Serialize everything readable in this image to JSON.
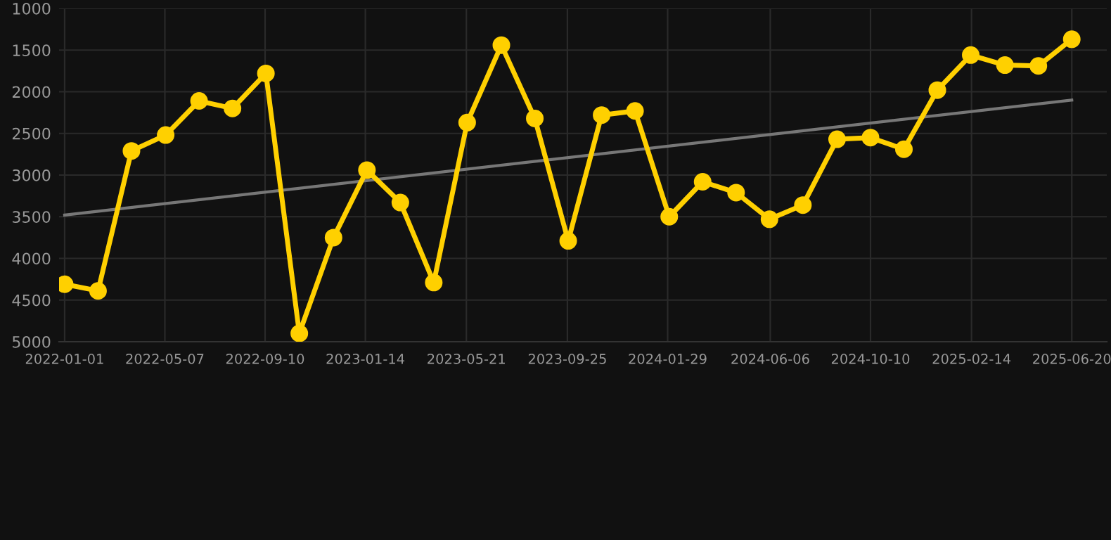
{
  "chart_data": {
    "type": "line",
    "x": [
      "2022-01-01",
      "2022-02-12",
      "2022-03-26",
      "2022-05-08",
      "2022-06-19",
      "2022-07-31",
      "2022-09-11",
      "2022-10-23",
      "2022-12-05",
      "2023-01-16",
      "2023-02-27",
      "2023-04-10",
      "2023-05-22",
      "2023-07-04",
      "2023-08-15",
      "2023-09-26",
      "2023-11-07",
      "2023-12-19",
      "2024-01-31",
      "2024-03-13",
      "2024-04-24",
      "2024-06-05",
      "2024-07-17",
      "2024-08-29",
      "2024-10-10",
      "2024-11-21",
      "2025-01-02",
      "2025-02-13",
      "2025-03-28",
      "2025-05-09",
      "2025-06-20"
    ],
    "series": [
      {
        "color": "#ffd000",
        "marker": "circle",
        "values": [
          4310,
          4390,
          2710,
          2520,
          2110,
          2200,
          1780,
          4900,
          3750,
          2940,
          3330,
          4290,
          2370,
          1440,
          2320,
          3790,
          2280,
          2230,
          3500,
          3080,
          3210,
          3530,
          3360,
          2570,
          2550,
          2690,
          1980,
          1560,
          1680,
          1690,
          1370
        ]
      },
      {
        "type": "line",
        "color": "#777777",
        "marker": "none",
        "x": [
          "2022-01-01",
          "2025-06-20"
        ],
        "values": [
          3480,
          2100
        ]
      }
    ],
    "xlim": [
      "2021-12-25",
      "2025-08-03"
    ],
    "xticks": [
      "2022-01-01",
      "2022-05-07",
      "2022-09-10",
      "2023-01-14",
      "2023-05-21",
      "2023-09-25",
      "2024-01-29",
      "2024-06-06",
      "2024-10-10",
      "2025-02-14",
      "2025-06-20"
    ],
    "ylim": [
      5000,
      1000
    ],
    "yticks": [
      1000,
      1500,
      2000,
      2500,
      3000,
      3500,
      4000,
      4500,
      5000
    ],
    "grid": true
  }
}
